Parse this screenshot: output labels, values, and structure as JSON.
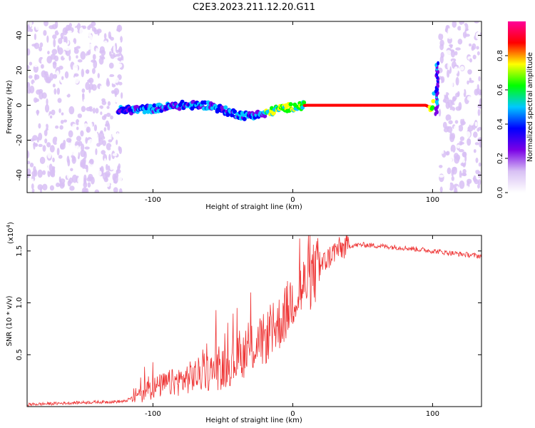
{
  "title": "C2E3.2023.211.12.20.G11",
  "chart_data": [
    {
      "type": "heatmap",
      "xlabel": "Height of straight line (km)",
      "ylabel": "Frequency (Hz)",
      "xlim": [
        -190,
        135
      ],
      "ylim": [
        -50,
        48
      ],
      "x_ticks": [
        -100,
        0,
        100
      ],
      "y_ticks": [
        -40,
        -20,
        0,
        20,
        40
      ],
      "colorbar": {
        "label": "Normalized spectral amplitude",
        "range": [
          0,
          1
        ],
        "ticks": [
          "0.0",
          "0.2",
          "0.4",
          "0.6",
          "0.8"
        ],
        "colormap": [
          "#ffffff",
          "#d8c0f4",
          "#7a00e6",
          "#0000ff",
          "#00c8ff",
          "#00ff00",
          "#ffff00",
          "#ff0000",
          "#ff0099"
        ]
      },
      "signal_track": {
        "description_points": [
          {
            "x": -125,
            "y": -3
          },
          {
            "x": -100,
            "y": -2
          },
          {
            "x": -80,
            "y": 0
          },
          {
            "x": -60,
            "y": 0
          },
          {
            "x": -45,
            "y": -4
          },
          {
            "x": -35,
            "y": -6
          },
          {
            "x": -20,
            "y": -5
          },
          {
            "x": -10,
            "y": -2
          },
          {
            "x": 0,
            "y": -1
          },
          {
            "x": 10,
            "y": 0
          },
          {
            "x": 50,
            "y": 0
          },
          {
            "x": 95,
            "y": 0
          },
          {
            "x": 100,
            "y": -2
          },
          {
            "x": 103,
            "y": 20
          }
        ]
      }
    },
    {
      "type": "line",
      "xlabel": "Height of straight line (km)",
      "ylabel": "SNR (10 * v/v)",
      "ylabel_scale": "(x10",
      "ylabel_scale_exp": "4",
      "ylabel_scale_close": ")",
      "xlim": [
        -190,
        135
      ],
      "ylim": [
        0,
        1.65
      ],
      "x_ticks": [
        -100,
        0,
        100
      ],
      "y_ticks": [
        0.5,
        1.0,
        1.5
      ],
      "y_tick_labels": [
        "0.5",
        "1.0",
        "1.5"
      ],
      "color": "#ee3333",
      "series": [
        {
          "x": [
            -190,
            -150,
            -120,
            -110,
            -100,
            -90,
            -80,
            -70,
            -60,
            -50,
            -40,
            -30,
            -20,
            -10,
            -5,
            0,
            5,
            10,
            20,
            30,
            40,
            50,
            60,
            80,
            100,
            120,
            135
          ],
          "values": [
            0.02,
            0.04,
            0.05,
            0.12,
            0.18,
            0.22,
            0.25,
            0.3,
            0.33,
            0.36,
            0.45,
            0.55,
            0.65,
            0.8,
            0.9,
            1.05,
            1.1,
            1.2,
            1.35,
            1.5,
            1.55,
            1.56,
            1.55,
            1.53,
            1.5,
            1.47,
            1.45
          ]
        }
      ],
      "spikes": [
        {
          "x": 5,
          "y": 1.62
        },
        {
          "x": -30,
          "y": 1.1
        },
        {
          "x": -40,
          "y": 0.95
        },
        {
          "x": -55,
          "y": 0.93
        }
      ]
    }
  ]
}
